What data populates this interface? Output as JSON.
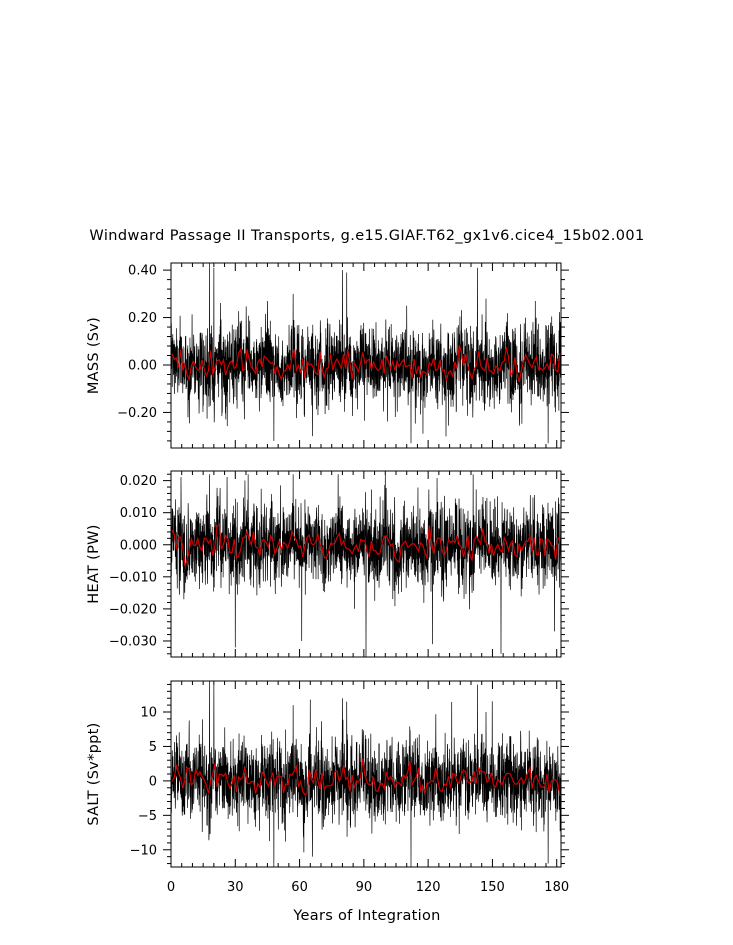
{
  "title": "Windward Passage II Transports, g.e15.GIAF.T62_gx1v6.cice4_15b02.001",
  "xlabel": "Years of Integration",
  "colors": {
    "raw": "#000000",
    "smoothed": "#d40000",
    "axes": "#000000",
    "background": "#ffffff"
  },
  "chart_data": [
    {
      "type": "line",
      "panel": "mass",
      "ylabel": "MASS (Sv)",
      "xlim": [
        0,
        182
      ],
      "ylim": [
        -0.35,
        0.43
      ],
      "xticks": [
        0,
        30,
        60,
        90,
        120,
        150,
        180
      ],
      "yticks": [
        -0.2,
        0.0,
        0.2,
        0.4
      ],
      "ytick_labels": [
        "−0.20",
        "0.00",
        "0.20",
        "0.40"
      ],
      "series": [
        {
          "role": "monthly",
          "noise_sd": 0.085,
          "spikes": [
            [
              18,
              0.43
            ],
            [
              20,
              0.41
            ],
            [
              45,
              0.27
            ],
            [
              57,
              0.3
            ],
            [
              80,
              0.4
            ],
            [
              82,
              0.39
            ],
            [
              143,
              0.41
            ],
            [
              147,
              0.28
            ],
            [
              110,
              0.25
            ],
            [
              170,
              0.27
            ],
            [
              48,
              -0.32
            ],
            [
              112,
              -0.33
            ],
            [
              176,
              -0.33
            ],
            [
              66,
              -0.3
            ]
          ]
        },
        {
          "role": "annual_mean",
          "amplitude": 0.03
        }
      ]
    },
    {
      "type": "line",
      "panel": "heat",
      "ylabel": "HEAT (PW)",
      "xlim": [
        0,
        182
      ],
      "ylim": [
        -0.035,
        0.023
      ],
      "xticks": [
        0,
        30,
        60,
        90,
        120,
        150,
        180
      ],
      "yticks": [
        -0.03,
        -0.02,
        -0.01,
        0.0,
        0.01,
        0.02
      ],
      "ytick_labels": [
        "−0.030",
        "−0.020",
        "−0.010",
        "0.000",
        "0.010",
        "0.020"
      ],
      "series": [
        {
          "role": "monthly",
          "noise_sd": 0.0065,
          "spikes": [
            [
              18,
              0.022
            ],
            [
              36,
              0.022
            ],
            [
              57,
              0.022
            ],
            [
              78,
              0.022
            ],
            [
              100,
              0.022
            ],
            [
              141,
              0.022
            ],
            [
              30,
              -0.032
            ],
            [
              61,
              -0.03
            ],
            [
              91,
              -0.035
            ],
            [
              122,
              -0.031
            ],
            [
              154,
              -0.034
            ],
            [
              179,
              -0.027
            ]
          ]
        },
        {
          "role": "annual_mean",
          "amplitude": 0.0025
        }
      ]
    },
    {
      "type": "line",
      "panel": "salt",
      "ylabel": "SALT (Sv*ppt)",
      "xlim": [
        0,
        182
      ],
      "ylim": [
        -12.5,
        14.5
      ],
      "xticks": [
        0,
        30,
        60,
        90,
        120,
        150,
        180
      ],
      "yticks": [
        -10,
        -5,
        0,
        5,
        10
      ],
      "ytick_labels": [
        "−10",
        "−5",
        "0",
        "5",
        "10"
      ],
      "series": [
        {
          "role": "monthly",
          "noise_sd": 3.0,
          "spikes": [
            [
              18,
              14.5
            ],
            [
              20,
              14.0
            ],
            [
              57,
              11.0
            ],
            [
              80,
              12.0
            ],
            [
              82,
              11.5
            ],
            [
              143,
              14.0
            ],
            [
              147,
              10.0
            ],
            [
              48,
              -12.5
            ],
            [
              112,
              -12.5
            ],
            [
              176,
              -12.0
            ],
            [
              66,
              -11.0
            ]
          ]
        },
        {
          "role": "annual_mean",
          "amplitude": 1.1
        }
      ]
    }
  ]
}
